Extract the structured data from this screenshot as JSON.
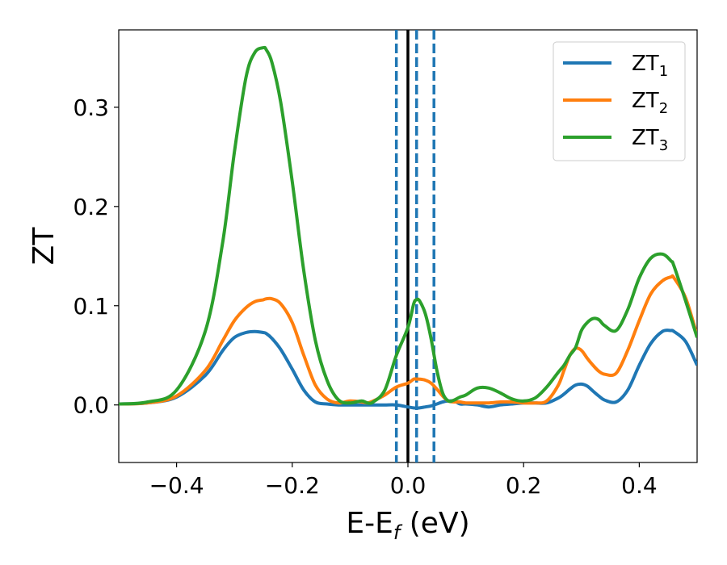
{
  "chart_data": {
    "type": "line",
    "title": "",
    "xlabel": "E-E",
    "xlabel_sub": "f",
    "xlabel_unit": " (eV)",
    "ylabel": "ZT",
    "xlim": [
      -0.5,
      0.5
    ],
    "ylim": [
      -0.058,
      0.378
    ],
    "xticks": [
      -0.4,
      -0.2,
      0.0,
      0.2,
      0.4
    ],
    "xtick_labels": [
      "−0.4",
      "−0.2",
      "0.0",
      "0.2",
      "0.4"
    ],
    "yticks": [
      0.0,
      0.1,
      0.2,
      0.3
    ],
    "ytick_labels": [
      "0.0",
      "0.1",
      "0.2",
      "0.3"
    ],
    "grid": false,
    "legend_position": "top-right",
    "vlines": [
      {
        "x": 0.0,
        "color": "#000000",
        "style": "solid"
      },
      {
        "x": -0.02,
        "color": "#1f77b4",
        "style": "dashed"
      },
      {
        "x": 0.015,
        "color": "#1f77b4",
        "style": "dashed"
      },
      {
        "x": 0.045,
        "color": "#1f77b4",
        "style": "dashed"
      }
    ],
    "x": [
      -0.5,
      -0.45,
      -0.4,
      -0.35,
      -0.32,
      -0.3,
      -0.28,
      -0.265,
      -0.25,
      -0.245,
      -0.235,
      -0.22,
      -0.2,
      -0.18,
      -0.16,
      -0.14,
      -0.12,
      -0.1,
      -0.08,
      -0.07,
      -0.06,
      -0.04,
      -0.02,
      0.0,
      0.01,
      0.015,
      0.02,
      0.03,
      0.04,
      0.05,
      0.06,
      0.07,
      0.08,
      0.09,
      0.1,
      0.12,
      0.14,
      0.16,
      0.18,
      0.2,
      0.22,
      0.24,
      0.26,
      0.27,
      0.28,
      0.29,
      0.3,
      0.31,
      0.32,
      0.33,
      0.34,
      0.36,
      0.38,
      0.4,
      0.42,
      0.44,
      0.455,
      0.46,
      0.48,
      0.5
    ],
    "series": [
      {
        "name": "ZT",
        "sub": "1",
        "color": "#1f77b4",
        "values": [
          0.001,
          0.002,
          0.008,
          0.03,
          0.055,
          0.068,
          0.073,
          0.074,
          0.073,
          0.072,
          0.067,
          0.056,
          0.036,
          0.015,
          0.003,
          0.001,
          0.0,
          0.0,
          0.0,
          0.0,
          0.0,
          0.0,
          0.0,
          -0.002,
          -0.003,
          -0.003,
          -0.003,
          -0.002,
          -0.001,
          0.001,
          0.003,
          0.004,
          0.004,
          0.001,
          0.001,
          0.0,
          -0.002,
          0.0,
          0.001,
          0.002,
          0.002,
          0.002,
          0.007,
          0.011,
          0.016,
          0.02,
          0.021,
          0.019,
          0.014,
          0.009,
          0.005,
          0.003,
          0.015,
          0.04,
          0.062,
          0.074,
          0.075,
          0.074,
          0.064,
          0.04
        ]
      },
      {
        "name": "ZT",
        "sub": "2",
        "color": "#ff7f0e",
        "values": [
          0.001,
          0.002,
          0.009,
          0.035,
          0.065,
          0.085,
          0.098,
          0.104,
          0.106,
          0.107,
          0.107,
          0.102,
          0.083,
          0.05,
          0.02,
          0.006,
          0.002,
          0.004,
          0.003,
          0.002,
          0.004,
          0.01,
          0.018,
          0.022,
          0.026,
          0.026,
          0.026,
          0.025,
          0.022,
          0.016,
          0.009,
          0.004,
          0.003,
          0.003,
          0.002,
          0.002,
          0.002,
          0.003,
          0.003,
          0.002,
          0.002,
          0.004,
          0.02,
          0.035,
          0.05,
          0.057,
          0.055,
          0.047,
          0.04,
          0.034,
          0.031,
          0.032,
          0.055,
          0.085,
          0.112,
          0.125,
          0.129,
          0.128,
          0.108,
          0.07
        ]
      },
      {
        "name": "ZT",
        "sub": "3",
        "color": "#2ca02c",
        "values": [
          0.001,
          0.003,
          0.015,
          0.075,
          0.165,
          0.255,
          0.33,
          0.355,
          0.36,
          0.358,
          0.345,
          0.305,
          0.225,
          0.135,
          0.065,
          0.025,
          0.005,
          0.002,
          0.004,
          0.002,
          0.003,
          0.015,
          0.05,
          0.078,
          0.102,
          0.106,
          0.105,
          0.092,
          0.067,
          0.035,
          0.012,
          0.004,
          0.005,
          0.008,
          0.01,
          0.017,
          0.017,
          0.012,
          0.006,
          0.004,
          0.007,
          0.018,
          0.033,
          0.04,
          0.05,
          0.058,
          0.075,
          0.083,
          0.087,
          0.086,
          0.08,
          0.075,
          0.096,
          0.128,
          0.148,
          0.152,
          0.145,
          0.14,
          0.105,
          0.068
        ]
      }
    ]
  }
}
